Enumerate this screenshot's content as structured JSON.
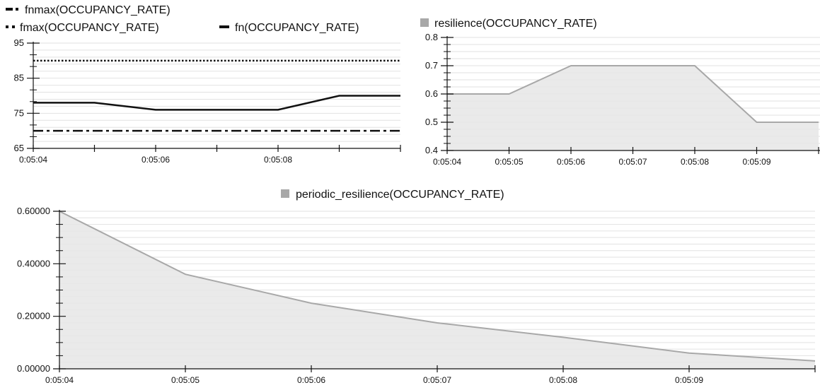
{
  "chart_data": [
    {
      "type": "line",
      "legend": [
        {
          "label": "fnmax(OCCUPANCY_RATE)",
          "style": "dash-dot"
        },
        {
          "label": "fmax(OCCUPANCY_RATE)",
          "style": "dotted"
        },
        {
          "label": "fn(OCCUPANCY_RATE)",
          "style": "solid"
        }
      ],
      "x": [
        "0:05:04",
        "0:05:05",
        "0:05:06",
        "0:05:07",
        "0:05:08",
        "0:05:09",
        "0:05:10"
      ],
      "xtick_labels": [
        "0:05:04",
        "0:05:06",
        "0:05:08"
      ],
      "series": [
        {
          "name": "fmax(OCCUPANCY_RATE)",
          "style": "dotted",
          "values": [
            90,
            90,
            90,
            90,
            90,
            90,
            90
          ]
        },
        {
          "name": "fn(OCCUPANCY_RATE)",
          "style": "solid",
          "values": [
            78,
            78,
            76,
            76,
            76,
            80,
            80
          ]
        },
        {
          "name": "fnmax(OCCUPANCY_RATE)",
          "style": "dash-dot",
          "values": [
            70,
            70,
            70,
            70,
            70,
            70,
            70
          ]
        }
      ],
      "yticks": [
        "65",
        "75",
        "85",
        "95"
      ],
      "ylim": [
        65,
        95
      ],
      "grid": true,
      "color": "#111111"
    },
    {
      "type": "area",
      "legend": [
        {
          "label": "resilience(OCCUPANCY_RATE)"
        }
      ],
      "x": [
        "0:05:04",
        "0:05:05",
        "0:05:06",
        "0:05:07",
        "0:05:08",
        "0:05:09",
        "0:05:10"
      ],
      "xtick_labels": [
        "0:05:04",
        "0:05:05",
        "0:05:06",
        "0:05:07",
        "0:05:08",
        "0:05:09"
      ],
      "series": [
        {
          "name": "resilience(OCCUPANCY_RATE)",
          "values": [
            0.6,
            0.6,
            0.7,
            0.7,
            0.7,
            0.5,
            0.5
          ]
        }
      ],
      "yticks": [
        "0.4",
        "0.5",
        "0.6",
        "0.7",
        "0.8"
      ],
      "ylim": [
        0.4,
        0.8
      ],
      "grid": true,
      "line_color": "#a8a8a8",
      "fill_color": "#e6e6e6"
    },
    {
      "type": "area",
      "legend": [
        {
          "label": "periodic_resilience(OCCUPANCY_RATE)"
        }
      ],
      "x": [
        "0:05:04",
        "0:05:05",
        "0:05:06",
        "0:05:07",
        "0:05:08",
        "0:05:09",
        "0:05:10"
      ],
      "xtick_labels": [
        "0:05:04",
        "0:05:05",
        "0:05:06",
        "0:05:07",
        "0:05:08",
        "0:05:09"
      ],
      "series": [
        {
          "name": "periodic_resilience(OCCUPANCY_RATE)",
          "values": [
            0.6,
            0.36,
            0.25,
            0.175,
            0.12,
            0.06,
            0.03
          ]
        }
      ],
      "yticks": [
        "0.00000",
        "0.20000",
        "0.40000",
        "0.60000"
      ],
      "ylim": [
        0,
        0.6
      ],
      "grid": true,
      "line_color": "#a8a8a8",
      "fill_color": "#e6e6e6"
    }
  ]
}
